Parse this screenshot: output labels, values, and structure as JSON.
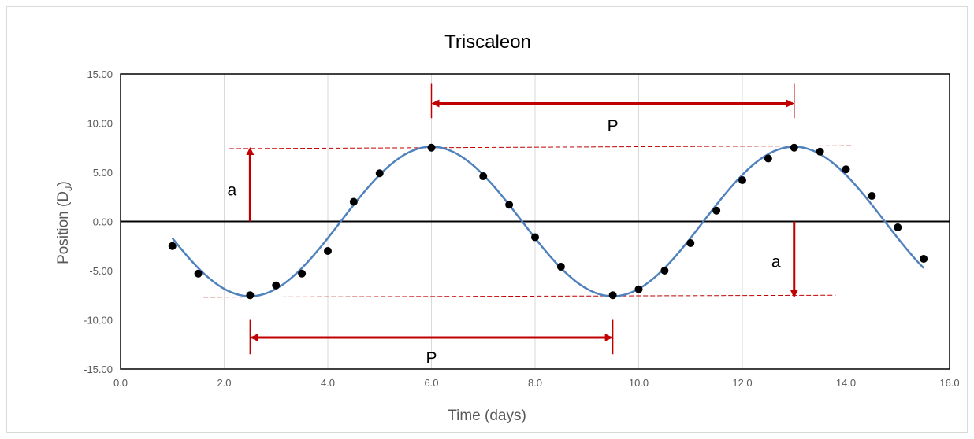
{
  "chart_data": {
    "type": "scatter",
    "title": "Triscaleon",
    "xlabel": "Time (days)",
    "ylabel_main": "Position (D",
    "ylabel_sub": "J",
    "ylabel_end": ")",
    "xlim": [
      0,
      16
    ],
    "ylim": [
      -15,
      15
    ],
    "x_ticks": [
      0,
      2,
      4,
      6,
      8,
      10,
      12,
      14,
      16
    ],
    "x_tick_labels": [
      "0.0",
      "2.0",
      "4.0",
      "6.0",
      "8.0",
      "10.0",
      "12.0",
      "14.0",
      "16.0"
    ],
    "y_ticks": [
      15,
      10,
      5,
      0,
      -5,
      -10,
      -15
    ],
    "y_tick_labels": [
      "15.00",
      "10.00",
      "5.00",
      "0.00",
      "-5.00",
      "-10.00",
      "-15.00"
    ],
    "grid": "vertical",
    "points": {
      "x": [
        1.0,
        1.5,
        2.5,
        3.0,
        3.5,
        4.0,
        4.5,
        5.0,
        6.0,
        7.0,
        7.5,
        8.0,
        8.5,
        9.5,
        10.0,
        10.5,
        11.0,
        11.5,
        12.0,
        12.5,
        13.0,
        13.5,
        14.0,
        14.5,
        15.0,
        15.5
      ],
      "y": [
        -2.5,
        -5.3,
        -7.5,
        -6.5,
        -5.3,
        -3.0,
        2.0,
        4.9,
        7.5,
        4.6,
        1.7,
        -1.6,
        -4.6,
        -7.5,
        -6.9,
        -5.0,
        -2.2,
        1.1,
        4.2,
        6.4,
        7.5,
        7.1,
        5.3,
        2.6,
        -0.6,
        -3.8
      ],
      "color": "#000000"
    },
    "fit": {
      "model": "sine",
      "amplitude": 7.6,
      "period": 7.0,
      "peak_x": 6.0,
      "x_range": [
        1.0,
        15.5
      ],
      "color": "#4f81bd"
    },
    "annotations": {
      "color": "#c00000",
      "period_label": "P",
      "amplitude_label": "a",
      "top_period": {
        "x_start": 6.0,
        "x_end": 13.0,
        "y": 12.0,
        "label_y": 9.8
      },
      "bottom_period": {
        "x_start": 2.5,
        "x_end": 9.5,
        "y": -11.8,
        "label_y": -13.8
      },
      "top_amplitude": {
        "x": 2.5,
        "y_from": 0,
        "y_to": 7.4,
        "label_x": 2.15,
        "label_y": 3.3
      },
      "bottom_amplitude": {
        "x": 13.0,
        "y_from": 0,
        "y_to": -7.6,
        "label_x": 12.65,
        "label_y": -4.0
      },
      "upper_envelope": {
        "x_start": 2.1,
        "y_start": 7.4,
        "x_end": 14.1,
        "y_end": 7.7
      },
      "lower_envelope": {
        "x_start": 1.6,
        "y_start": -7.7,
        "x_end": 13.8,
        "y_end": -7.5
      },
      "period_ticks": [
        {
          "x": 6.0,
          "y_from": 10.5,
          "y_to": 14.0
        },
        {
          "x": 13.0,
          "y_from": 10.5,
          "y_to": 14.0
        },
        {
          "x": 2.5,
          "y_from": -10.0,
          "y_to": -13.5
        },
        {
          "x": 9.5,
          "y_from": -10.0,
          "y_to": -13.5
        }
      ]
    }
  }
}
